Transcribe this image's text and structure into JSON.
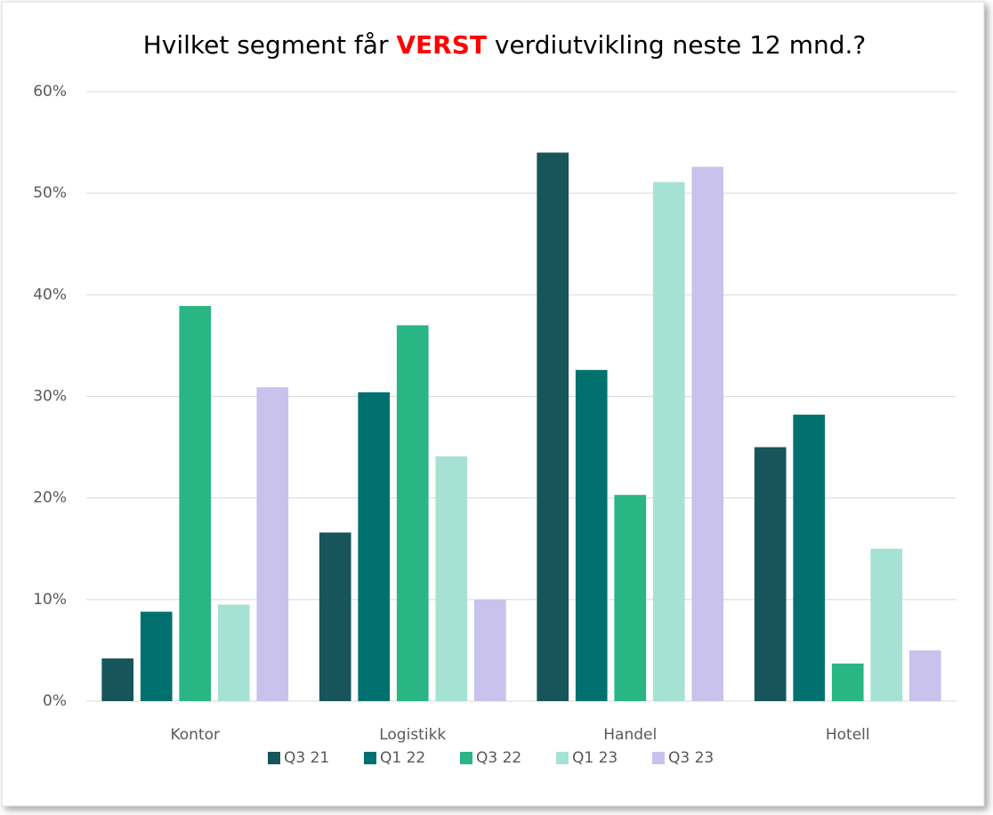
{
  "chart_data": {
    "type": "bar",
    "title": {
      "before": "Hvilket segment får ",
      "emphasis": "VERST",
      "after": " verdiutvikling neste 12 mnd.?"
    },
    "title_emphasis_color": "#ff0000",
    "categories": [
      "Kontor",
      "Logistikk",
      "Handel",
      "Hotell"
    ],
    "series": [
      {
        "name": "Q3 21",
        "color": "#17555a",
        "values": [
          4.2,
          16.6,
          54.0,
          25.0
        ]
      },
      {
        "name": "Q1 22",
        "color": "#00706e",
        "values": [
          8.8,
          30.4,
          32.6,
          28.2
        ]
      },
      {
        "name": "Q3 22",
        "color": "#2ab584",
        "values": [
          38.9,
          37.0,
          20.3,
          3.7
        ]
      },
      {
        "name": "Q1 23",
        "color": "#a6e2d3",
        "values": [
          9.5,
          24.1,
          51.1,
          15.0
        ]
      },
      {
        "name": "Q3 23",
        "color": "#c8c2ec",
        "values": [
          30.9,
          10.0,
          52.6,
          5.0
        ]
      }
    ],
    "ylim": [
      0,
      60
    ],
    "yticks": [
      {
        "value": 0,
        "label": "0%"
      },
      {
        "value": 10,
        "label": "10%"
      },
      {
        "value": 20,
        "label": "20%"
      },
      {
        "value": 30,
        "label": "30%"
      },
      {
        "value": 40,
        "label": "40%"
      },
      {
        "value": 50,
        "label": "50%"
      },
      {
        "value": 60,
        "label": "60%"
      }
    ],
    "grid": true,
    "legend": "bottom"
  }
}
